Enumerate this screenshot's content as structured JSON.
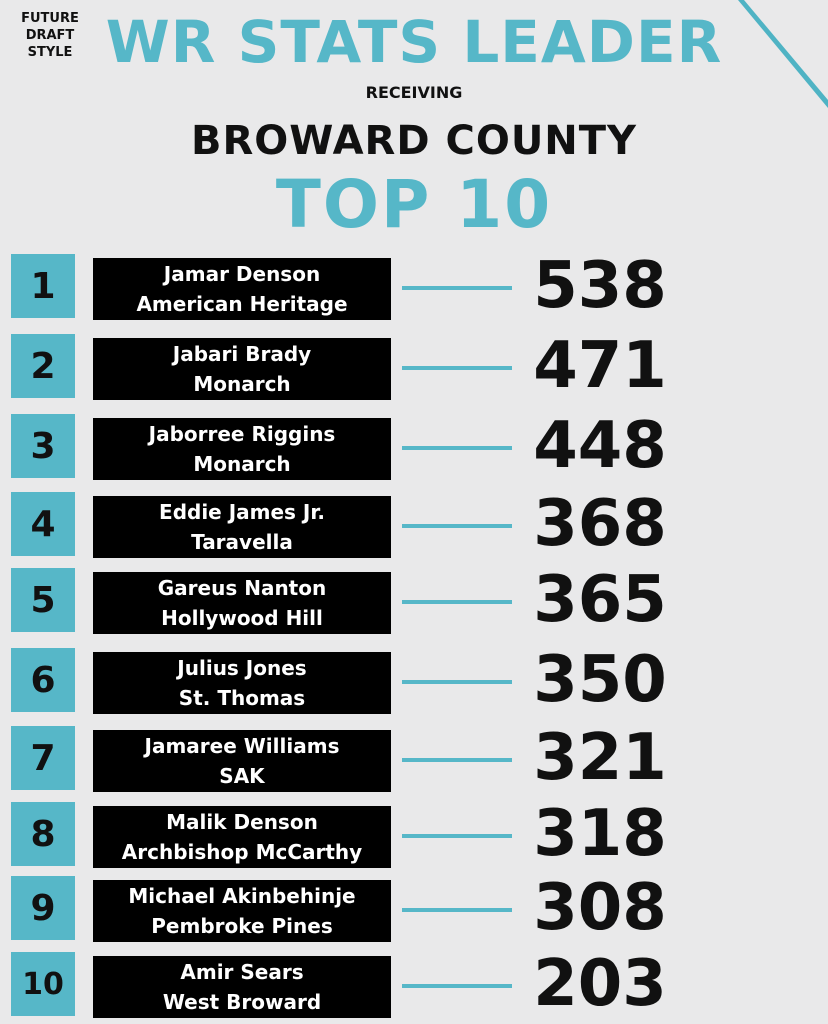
{
  "brand": {
    "line1": "FUTURE",
    "line2": "DRAFT",
    "line3": "STYLE"
  },
  "header": {
    "title": "WR STATS LEADER",
    "subtitle": "RECEIVING",
    "region": "BROWARD COUNTY",
    "list_title": "TOP 10"
  },
  "colors": {
    "accent": "#56b7c8",
    "background": "#e9e9ea",
    "box": "#000000"
  },
  "players": [
    {
      "rank": "1",
      "name": "Jamar Denson",
      "school": "American Heritage",
      "yards": "538"
    },
    {
      "rank": "2",
      "name": "Jabari Brady",
      "school": "Monarch",
      "yards": "471"
    },
    {
      "rank": "3",
      "name": "Jaborree Riggins",
      "school": "Monarch",
      "yards": "448"
    },
    {
      "rank": "4",
      "name": "Eddie James Jr.",
      "school": "Taravella",
      "yards": "368"
    },
    {
      "rank": "5",
      "name": "Gareus Nanton",
      "school": "Hollywood Hill",
      "yards": "365"
    },
    {
      "rank": "6",
      "name": "Julius Jones",
      "school": "St. Thomas",
      "yards": "350"
    },
    {
      "rank": "7",
      "name": "Jamaree Williams",
      "school": "SAK",
      "yards": "321"
    },
    {
      "rank": "8",
      "name": "Malik Denson",
      "school": "Archbishop McCarthy",
      "yards": "318"
    },
    {
      "rank": "9",
      "name": "Michael Akinbehinje",
      "school": "Pembroke Pines",
      "yards": "308"
    },
    {
      "rank": "10",
      "name": "Amir Sears",
      "school": "West Broward",
      "yards": "203"
    }
  ]
}
